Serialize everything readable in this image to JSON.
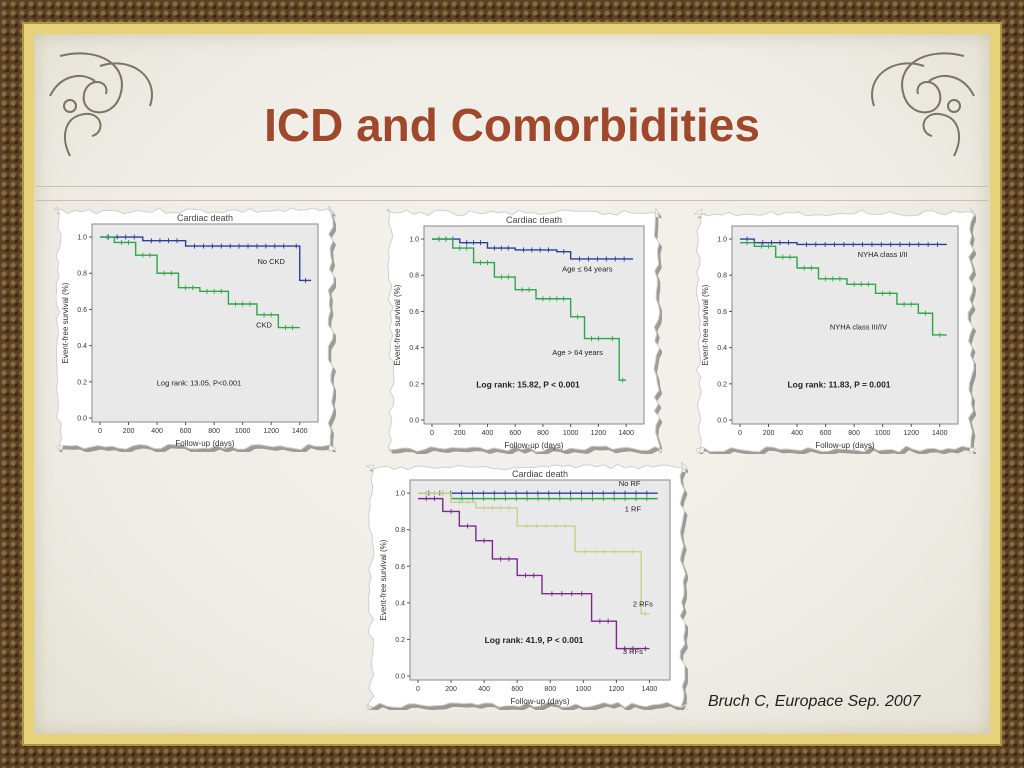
{
  "slide": {
    "title": "ICD and Comorbidities",
    "citation": "Bruch C, Europace Sep. 2007"
  },
  "colors": {
    "blue": "#2b3f9c",
    "green": "#2fa64a",
    "olive": "#c8cf8a",
    "purple": "#7b2a8a",
    "title": "#a0482c"
  },
  "chart_data": [
    {
      "type": "line",
      "title": "Cardiac death",
      "xlabel": "Follow-up (days)",
      "ylabel": "Event-free survival (%)",
      "xlim": [
        0,
        1500
      ],
      "ylim": [
        0,
        1.05
      ],
      "xticks": [
        "0",
        "200",
        "400",
        "600",
        "800",
        "1000",
        "1200",
        "1400"
      ],
      "yticks": [
        "0.0",
        "0.2",
        "0.4",
        "0.6",
        "0.8",
        "1.0"
      ],
      "annotation": "Log rank: 13.05, P<0.001",
      "series": [
        {
          "name": "No CKD",
          "color": "#2b3f9c",
          "x": [
            0,
            300,
            600,
            1350,
            1400,
            1480
          ],
          "y": [
            1.0,
            0.98,
            0.95,
            0.95,
            0.76,
            0.76
          ],
          "label_at": [
            1200,
            0.85
          ]
        },
        {
          "name": "CKD",
          "color": "#2fa64a",
          "x": [
            0,
            100,
            250,
            400,
            550,
            700,
            900,
            1100,
            1250,
            1400
          ],
          "y": [
            1.0,
            0.97,
            0.9,
            0.8,
            0.72,
            0.7,
            0.63,
            0.57,
            0.5,
            0.5
          ],
          "label_at": [
            1150,
            0.5
          ]
        }
      ]
    },
    {
      "type": "line",
      "title": "Cardiac death",
      "xlabel": "Follow-up (days)",
      "ylabel": "Event-free survival (%)",
      "xlim": [
        0,
        1500
      ],
      "ylim": [
        0,
        1.05
      ],
      "xticks": [
        "0",
        "200",
        "400",
        "600",
        "800",
        "1000",
        "1200",
        "1400"
      ],
      "yticks": [
        "0.0",
        "0.2",
        "0.4",
        "0.6",
        "0.8",
        "1.0"
      ],
      "annotation": "Log rank: 15.82, P < 0.001",
      "series": [
        {
          "name": "Age ≤ 64 years",
          "color": "#2b3f9c",
          "x": [
            0,
            200,
            400,
            600,
            900,
            1000,
            1450
          ],
          "y": [
            1.0,
            0.98,
            0.95,
            0.94,
            0.93,
            0.89,
            0.89
          ],
          "label_at": [
            1120,
            0.82
          ]
        },
        {
          "name": "Age > 64 years",
          "color": "#2fa64a",
          "x": [
            0,
            150,
            300,
            450,
            600,
            750,
            1000,
            1100,
            1250,
            1350,
            1400
          ],
          "y": [
            1.0,
            0.95,
            0.87,
            0.79,
            0.72,
            0.67,
            0.57,
            0.45,
            0.45,
            0.22,
            0.22
          ],
          "label_at": [
            1050,
            0.36
          ]
        }
      ]
    },
    {
      "type": "line",
      "title": "",
      "xlabel": "Follow-up (days)",
      "ylabel": "Event-free survival (%)",
      "xlim": [
        0,
        1500
      ],
      "ylim": [
        0,
        1.05
      ],
      "xticks": [
        "0",
        "200",
        "400",
        "600",
        "800",
        "1000",
        "1200",
        "1400"
      ],
      "yticks": [
        "0.0",
        "0.2",
        "0.4",
        "0.6",
        "0.8",
        "1.0"
      ],
      "annotation": "Log rank: 11.83, P = 0.001",
      "series": [
        {
          "name": "NYHA class I/II",
          "color": "#2b3f9c",
          "x": [
            0,
            100,
            400,
            1450
          ],
          "y": [
            1.0,
            0.98,
            0.97,
            0.97
          ],
          "label_at": [
            1000,
            0.9
          ]
        },
        {
          "name": "NYHA class III/IV",
          "color": "#2fa64a",
          "x": [
            0,
            100,
            250,
            400,
            550,
            750,
            950,
            1100,
            1250,
            1350,
            1450
          ],
          "y": [
            0.98,
            0.96,
            0.9,
            0.84,
            0.78,
            0.75,
            0.7,
            0.64,
            0.59,
            0.47,
            0.47
          ],
          "label_at": [
            830,
            0.5
          ]
        }
      ]
    },
    {
      "type": "line",
      "title": "Cardiac death",
      "xlabel": "Follow-up (days)",
      "ylabel": "Event-free survival (%)",
      "xlim": [
        0,
        1500
      ],
      "ylim": [
        0,
        1.05
      ],
      "xticks": [
        "0",
        "200",
        "400",
        "600",
        "800",
        "1000",
        "1200",
        "1400"
      ],
      "yticks": [
        "0.0",
        "0.2",
        "0.4",
        "0.6",
        "0.8",
        "1.0"
      ],
      "annotation": "Log rank: 41.9, P < 0.001",
      "series": [
        {
          "name": "No RF",
          "color": "#2b3f9c",
          "x": [
            0,
            1450
          ],
          "y": [
            1.0,
            1.0
          ],
          "label_at": [
            1280,
            1.04
          ]
        },
        {
          "name": "1 RF",
          "color": "#2fa64a",
          "x": [
            0,
            200,
            1450
          ],
          "y": [
            1.0,
            0.97,
            0.97
          ],
          "label_at": [
            1300,
            0.9
          ]
        },
        {
          "name": "2 RFs",
          "color": "#c8cf8a",
          "x": [
            0,
            200,
            350,
            600,
            950,
            1250,
            1350,
            1400
          ],
          "y": [
            1.0,
            0.95,
            0.92,
            0.82,
            0.68,
            0.68,
            0.34,
            0.34
          ],
          "label_at": [
            1360,
            0.38
          ]
        },
        {
          "name": "3 RFs",
          "color": "#7b2a8a",
          "x": [
            0,
            150,
            250,
            350,
            450,
            600,
            750,
            1050,
            1200,
            1350,
            1400
          ],
          "y": [
            0.97,
            0.9,
            0.82,
            0.74,
            0.64,
            0.55,
            0.45,
            0.3,
            0.15,
            0.15,
            0.15
          ],
          "label_at": [
            1300,
            0.12
          ]
        }
      ]
    }
  ]
}
